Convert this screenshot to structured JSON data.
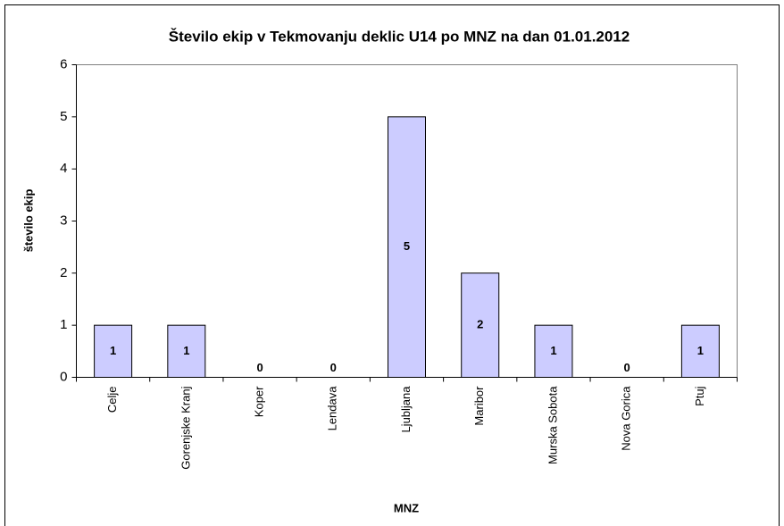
{
  "chart_data": {
    "type": "bar",
    "title": "Število ekip v Tekmovanju deklic U14 po MNZ na dan 01.01.2012",
    "x_label": "MNZ",
    "y_label": "število ekip",
    "categories": [
      "Celje",
      "Gorenjske Kranj",
      "Koper",
      "Lendava",
      "Ljubljana",
      "Maribor",
      "Murska Sobota",
      "Nova Gorica",
      "Ptuj"
    ],
    "values": [
      1,
      1,
      0,
      0,
      5,
      2,
      1,
      0,
      1
    ],
    "color": "#ccccff",
    "ylim": [
      0,
      6
    ],
    "yticks": [
      0,
      1,
      2,
      3,
      4,
      5,
      6
    ],
    "grid": false
  }
}
